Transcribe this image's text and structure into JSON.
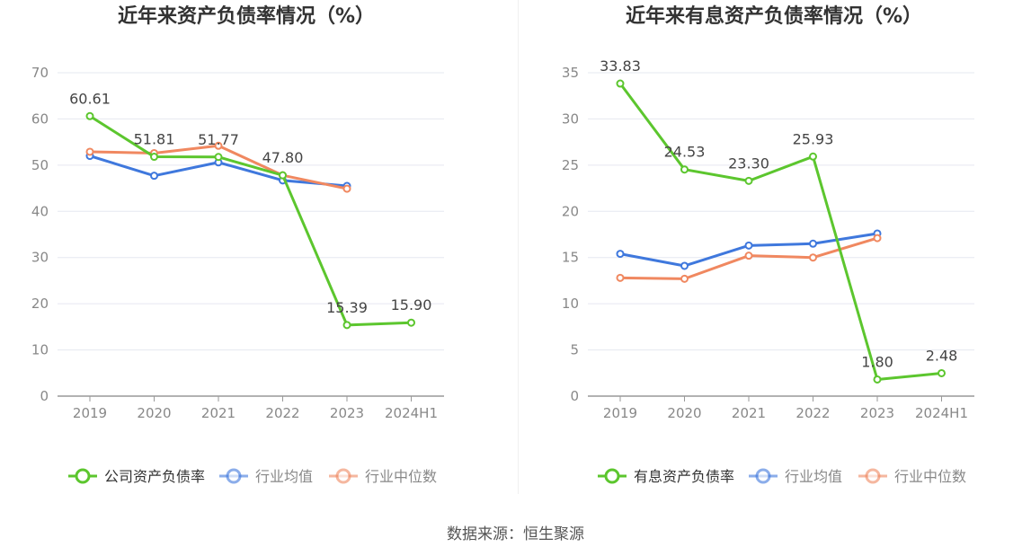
{
  "chart_data": [
    {
      "type": "line",
      "title": "近年来资产负债率情况（%）",
      "categories": [
        "2019",
        "2020",
        "2021",
        "2022",
        "2023",
        "2024H1"
      ],
      "ylim": [
        0,
        70
      ],
      "yticks": [
        0,
        10,
        20,
        30,
        40,
        50,
        60,
        70
      ],
      "grid": true,
      "legend_position": "bottom",
      "series": [
        {
          "name": "公司资产负债率",
          "color": "#5cc62e",
          "values": [
            60.61,
            51.81,
            51.77,
            47.8,
            15.39,
            15.9
          ],
          "labels": [
            "60.61",
            "51.81",
            "51.77",
            "47.80",
            "15.39",
            "15.90"
          ]
        },
        {
          "name": "行业均值",
          "color": "#3f78dd",
          "values": [
            52.0,
            47.7,
            50.6,
            46.7,
            45.5,
            null
          ]
        },
        {
          "name": "行业中位数",
          "color": "#f08860",
          "values": [
            52.9,
            52.6,
            54.2,
            47.8,
            44.9,
            null
          ]
        }
      ]
    },
    {
      "type": "line",
      "title": "近年来有息资产负债率情况（%）",
      "categories": [
        "2019",
        "2020",
        "2021",
        "2022",
        "2023",
        "2024H1"
      ],
      "ylim": [
        0,
        35
      ],
      "yticks": [
        0,
        5,
        10,
        15,
        20,
        25,
        30,
        35
      ],
      "grid": true,
      "legend_position": "bottom",
      "series": [
        {
          "name": "有息资产负债率",
          "color": "#5cc62e",
          "values": [
            33.83,
            24.53,
            23.3,
            25.93,
            1.8,
            2.48
          ],
          "labels": [
            "33.83",
            "24.53",
            "23.30",
            "25.93",
            "1.80",
            "2.48"
          ]
        },
        {
          "name": "行业均值",
          "color": "#3f78dd",
          "values": [
            15.4,
            14.1,
            16.3,
            16.5,
            17.6,
            null
          ]
        },
        {
          "name": "行业中位数",
          "color": "#f08860",
          "values": [
            12.8,
            12.7,
            15.2,
            15.0,
            17.1,
            null
          ]
        }
      ]
    }
  ],
  "footer": {
    "source": "数据来源：恒生聚源"
  }
}
